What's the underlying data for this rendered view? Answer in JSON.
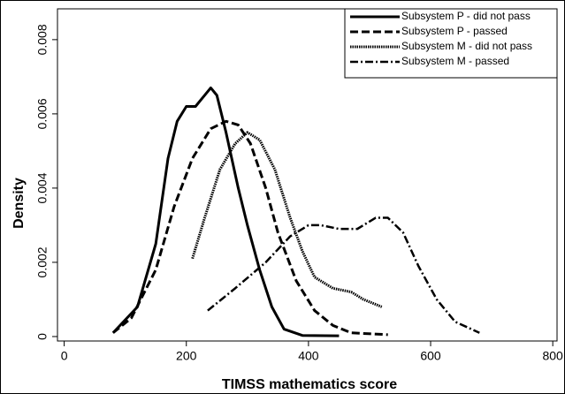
{
  "chart_data": {
    "type": "line",
    "x_label": "TIMSS mathematics score",
    "y_label": "Density",
    "xlim": [
      -11,
      807
    ],
    "ylim": [
      -0.00012,
      0.00883
    ],
    "xticks": [
      0,
      200,
      400,
      600,
      800
    ],
    "yticks": [
      0,
      0.002,
      0.004,
      0.006,
      0.008
    ],
    "legend": "upper right",
    "series": [
      {
        "name": "Subsystem P - did not pass",
        "color": "#000000",
        "dash": "solid",
        "x": [
          80,
          120,
          150,
          170,
          185,
          200,
          215,
          225,
          240,
          250,
          265,
          285,
          300,
          320,
          340,
          360,
          390,
          450
        ],
        "values": [
          0.0001,
          0.0008,
          0.0025,
          0.0048,
          0.0058,
          0.0062,
          0.0062,
          0.0064,
          0.0067,
          0.0065,
          0.0055,
          0.004,
          0.003,
          0.0018,
          0.0008,
          0.0002,
          3e-05,
          2e-05
        ]
      },
      {
        "name": "Subsystem P - passed",
        "color": "#000000",
        "dash": "dashed",
        "x": [
          80,
          110,
          150,
          180,
          210,
          240,
          265,
          285,
          305,
          330,
          350,
          380,
          410,
          440,
          470,
          530
        ],
        "values": [
          0.0001,
          0.0005,
          0.0018,
          0.0035,
          0.0048,
          0.0056,
          0.0058,
          0.0057,
          0.0052,
          0.004,
          0.0028,
          0.0015,
          0.0007,
          0.0003,
          0.0001,
          5e-05
        ]
      },
      {
        "name": "Subsystem M - did not pass",
        "color": "#000000",
        "dash": "dotted",
        "x": [
          210,
          230,
          255,
          280,
          300,
          320,
          345,
          370,
          390,
          410,
          440,
          470,
          490,
          520
        ],
        "values": [
          0.0021,
          0.0032,
          0.0045,
          0.0052,
          0.0055,
          0.0053,
          0.0045,
          0.0032,
          0.0023,
          0.0016,
          0.0013,
          0.0012,
          0.001,
          0.0008
        ]
      },
      {
        "name": "Subsystem M - passed",
        "color": "#000000",
        "dash": "dashdot",
        "x": [
          235,
          280,
          330,
          370,
          400,
          420,
          450,
          480,
          510,
          530,
          555,
          580,
          610,
          640,
          680
        ],
        "values": [
          0.0007,
          0.0013,
          0.002,
          0.0027,
          0.003,
          0.003,
          0.0029,
          0.0029,
          0.0032,
          0.0032,
          0.0028,
          0.0019,
          0.001,
          0.0004,
          0.0001
        ]
      }
    ]
  }
}
